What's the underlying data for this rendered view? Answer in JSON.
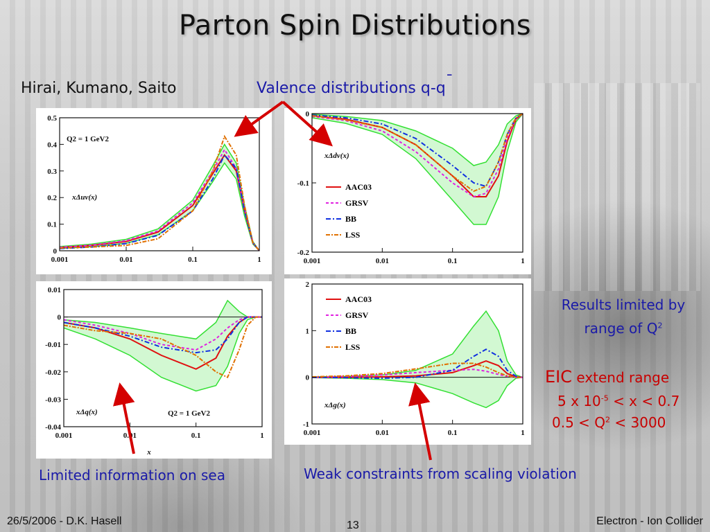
{
  "slide": {
    "title": "Parton Spin Distributions",
    "authors": "Hirai, Kumano, Saito",
    "valence_label": "Valence distributions q-q",
    "valence_bar": "¯",
    "sea_label": "Limited information on sea",
    "gluon_label": "Weak constraints from scaling violation",
    "results_line1": "Results limited by",
    "results_line2": "range of Q",
    "results_sup": "2",
    "eic_prefix": "EIC",
    "eic_text": "extend range",
    "x_range_a": "5 x 10",
    "x_range_sup": "-5",
    "x_range_b": "< x < 0.7",
    "q2_range_a": "0.5 < Q",
    "q2_range_sup": "2",
    "q2_range_b": "< 3000"
  },
  "footer": {
    "left": "26/5/2006 - D.K. Hasell",
    "page": "13",
    "right": "Electron - Ion Collider"
  },
  "colors": {
    "text_blue": "#1a1aa8",
    "arrow_red": "#d40000",
    "band_green": "#33e033",
    "aac03": "#e01010",
    "grsv": "#e020e0",
    "bb": "#1030e0",
    "lss": "#e07000"
  },
  "chart_data": [
    {
      "type": "line",
      "panel": "top-left",
      "label": "xΔuv(x)",
      "annotation": "Q2 = 1 GeV2",
      "x_scale": "log",
      "xlim": [
        0.001,
        1
      ],
      "ylim": [
        0,
        0.5
      ],
      "xticks": [
        "0.001",
        "0.01",
        "0.1",
        "1"
      ],
      "yticks": [
        "0",
        "0.1",
        "0.2",
        "0.3",
        "0.4",
        "0.5"
      ],
      "x": [
        0.001,
        0.003,
        0.01,
        0.03,
        0.1,
        0.2,
        0.3,
        0.45,
        0.6,
        0.8,
        1.0
      ],
      "series": [
        {
          "name": "AAC03",
          "values": [
            0.012,
            0.02,
            0.035,
            0.07,
            0.17,
            0.29,
            0.36,
            0.3,
            0.15,
            0.03,
            0
          ]
        },
        {
          "name": "GRSV",
          "values": [
            0.013,
            0.021,
            0.038,
            0.075,
            0.18,
            0.3,
            0.38,
            0.31,
            0.16,
            0.03,
            0
          ]
        },
        {
          "name": "BB",
          "values": [
            0.008,
            0.014,
            0.027,
            0.058,
            0.15,
            0.27,
            0.36,
            0.31,
            0.15,
            0.03,
            0
          ]
        },
        {
          "name": "LSS",
          "values": [
            0.01,
            0.014,
            0.02,
            0.045,
            0.15,
            0.3,
            0.43,
            0.36,
            0.17,
            0.03,
            0
          ]
        }
      ],
      "band_upper": [
        0.016,
        0.025,
        0.043,
        0.082,
        0.19,
        0.32,
        0.4,
        0.33,
        0.17,
        0.035,
        0
      ],
      "band_lower": [
        0.008,
        0.015,
        0.028,
        0.06,
        0.15,
        0.26,
        0.33,
        0.27,
        0.13,
        0.025,
        0
      ]
    },
    {
      "type": "line",
      "panel": "top-right",
      "label": "xΔdv(x)",
      "x_scale": "log",
      "xlim": [
        0.001,
        1
      ],
      "ylim": [
        -0.2,
        0
      ],
      "xticks": [
        "0.001",
        "0.01",
        "0.1",
        "1"
      ],
      "yticks": [
        "-0.2",
        "-0.1",
        "0"
      ],
      "legend": [
        "AAC03",
        "GRSV",
        "BB",
        "LSS"
      ],
      "legend_position": "left",
      "x": [
        0.001,
        0.003,
        0.01,
        0.03,
        0.1,
        0.2,
        0.3,
        0.45,
        0.6,
        0.8,
        1.0
      ],
      "series": [
        {
          "name": "AAC03",
          "values": [
            -0.003,
            -0.008,
            -0.02,
            -0.045,
            -0.09,
            -0.12,
            -0.12,
            -0.09,
            -0.04,
            -0.008,
            0
          ]
        },
        {
          "name": "GRSV",
          "values": [
            -0.004,
            -0.01,
            -0.025,
            -0.055,
            -0.1,
            -0.12,
            -0.115,
            -0.08,
            -0.035,
            -0.007,
            0
          ]
        },
        {
          "name": "BB",
          "values": [
            -0.002,
            -0.006,
            -0.015,
            -0.036,
            -0.075,
            -0.1,
            -0.105,
            -0.07,
            -0.03,
            -0.006,
            0
          ]
        },
        {
          "name": "LSS",
          "values": [
            -0.003,
            -0.009,
            -0.02,
            -0.045,
            -0.09,
            -0.112,
            -0.105,
            -0.07,
            -0.03,
            -0.006,
            0
          ]
        }
      ],
      "band_upper": [
        -0.001,
        -0.004,
        -0.01,
        -0.025,
        -0.05,
        -0.075,
        -0.07,
        -0.045,
        -0.015,
        -0.003,
        0
      ],
      "band_lower": [
        -0.006,
        -0.014,
        -0.03,
        -0.065,
        -0.125,
        -0.16,
        -0.16,
        -0.12,
        -0.055,
        -0.012,
        0
      ]
    },
    {
      "type": "line",
      "panel": "bottom-left",
      "label": "xΔq(x)",
      "annotation": "Q2 = 1 GeV2",
      "xlabel": "x",
      "x_scale": "log",
      "xlim": [
        0.001,
        1
      ],
      "ylim": [
        -0.04,
        0.01
      ],
      "xticks": [
        "0.001",
        "0.01",
        "0.1",
        "1"
      ],
      "yticks": [
        "-0.04",
        "-0.03",
        "-0.02",
        "-0.01",
        "0",
        "0.01"
      ],
      "x": [
        0.001,
        0.003,
        0.01,
        0.03,
        0.1,
        0.2,
        0.3,
        0.45,
        0.6,
        0.8,
        1.0
      ],
      "series": [
        {
          "name": "AAC03",
          "values": [
            -0.002,
            -0.004,
            -0.008,
            -0.014,
            -0.019,
            -0.015,
            -0.007,
            -0.002,
            0,
            0,
            0
          ]
        },
        {
          "name": "GRSV",
          "values": [
            -0.001,
            -0.003,
            -0.006,
            -0.01,
            -0.012,
            -0.008,
            -0.004,
            -0.001,
            0,
            0,
            0
          ]
        },
        {
          "name": "BB",
          "values": [
            -0.002,
            -0.004,
            -0.007,
            -0.011,
            -0.013,
            -0.012,
            -0.008,
            -0.002,
            0,
            0,
            0
          ]
        },
        {
          "name": "LSS",
          "values": [
            -0.003,
            -0.005,
            -0.006,
            -0.008,
            -0.014,
            -0.02,
            -0.022,
            -0.012,
            -0.003,
            0,
            0
          ]
        }
      ],
      "band_upper": [
        -0.001,
        -0.002,
        -0.004,
        -0.006,
        -0.008,
        -0.002,
        0.006,
        0.002,
        0,
        0,
        0
      ],
      "band_lower": [
        -0.004,
        -0.008,
        -0.014,
        -0.022,
        -0.027,
        -0.025,
        -0.018,
        -0.006,
        -0.001,
        0,
        0
      ]
    },
    {
      "type": "line",
      "panel": "bottom-right",
      "label": "xΔg(x)",
      "x_scale": "log",
      "xlim": [
        0.001,
        1
      ],
      "ylim": [
        -1,
        2
      ],
      "xticks": [
        "0.001",
        "0.01",
        "0.1",
        "1"
      ],
      "yticks": [
        "-1",
        "0",
        "1",
        "2"
      ],
      "legend": [
        "AAC03",
        "GRSV",
        "BB",
        "LSS"
      ],
      "legend_position": "top-left",
      "x": [
        0.001,
        0.003,
        0.01,
        0.03,
        0.1,
        0.2,
        0.3,
        0.45,
        0.6,
        0.8,
        1.0
      ],
      "series": [
        {
          "name": "AAC03",
          "values": [
            0,
            0,
            0.01,
            0.03,
            0.1,
            0.25,
            0.35,
            0.25,
            0.08,
            0.01,
            0
          ]
        },
        {
          "name": "GRSV",
          "values": [
            0,
            0.02,
            0.05,
            0.1,
            0.15,
            0.17,
            0.13,
            0.06,
            0.02,
            0,
            0
          ]
        },
        {
          "name": "BB",
          "values": [
            0,
            -0.01,
            -0.02,
            0,
            0.15,
            0.45,
            0.6,
            0.45,
            0.15,
            0.02,
            0
          ]
        },
        {
          "name": "LSS",
          "values": [
            0.01,
            0.03,
            0.08,
            0.18,
            0.3,
            0.3,
            0.22,
            0.1,
            0.03,
            0,
            0
          ]
        }
      ],
      "band_upper": [
        0.01,
        0.02,
        0.05,
        0.15,
        0.5,
        1.1,
        1.42,
        1.0,
        0.35,
        0.05,
        0
      ],
      "band_lower": [
        -0.01,
        -0.02,
        -0.05,
        -0.12,
        -0.35,
        -0.55,
        -0.65,
        -0.5,
        -0.18,
        -0.02,
        0
      ]
    }
  ]
}
